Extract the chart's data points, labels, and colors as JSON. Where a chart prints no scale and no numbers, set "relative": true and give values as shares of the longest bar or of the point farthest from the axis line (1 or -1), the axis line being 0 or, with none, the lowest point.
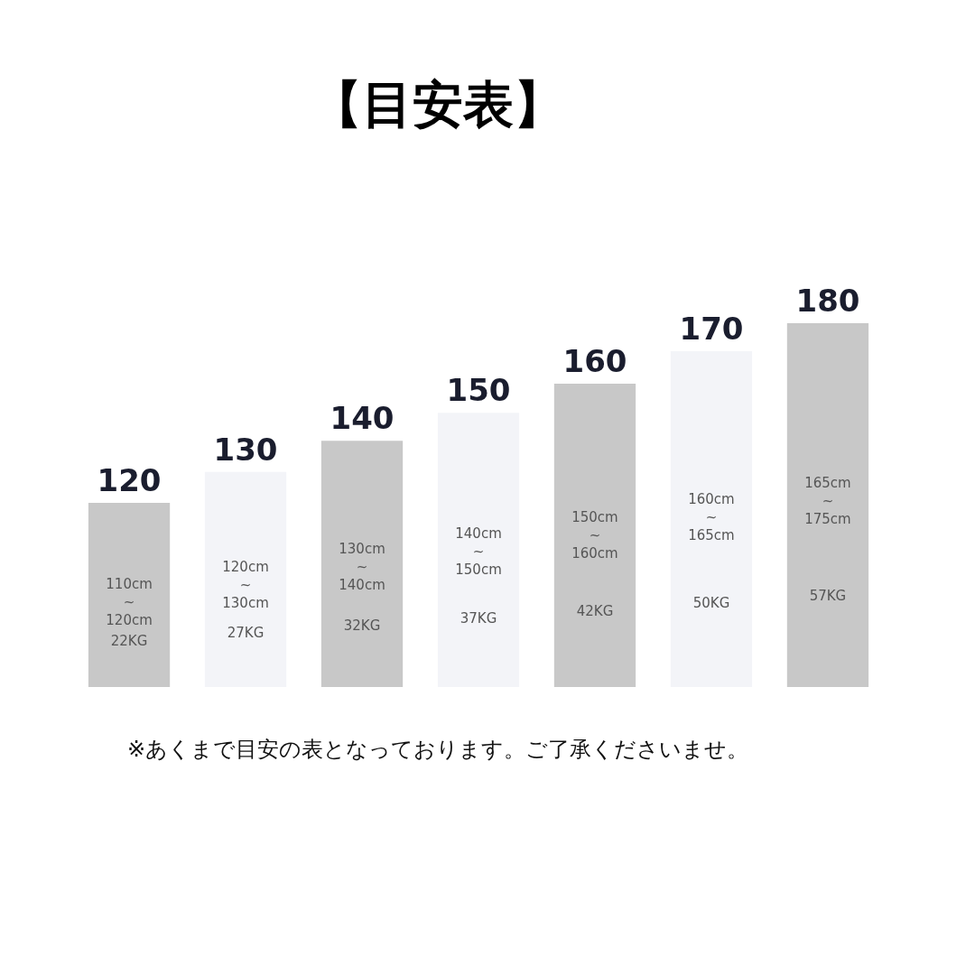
{
  "chart_data": {
    "type": "bar",
    "title": "【目安表】",
    "relative": true,
    "categories": [
      "120",
      "130",
      "140",
      "150",
      "160",
      "170",
      "180"
    ],
    "values": [
      0.506,
      0.591,
      0.677,
      0.754,
      0.834,
      0.923,
      1
    ],
    "colors": [
      "#c8c8c8",
      "#f3f4f8",
      "#c8c8c8",
      "#f3f4f8",
      "#c8c8c8",
      "#f3f4f8",
      "#c8c8c8"
    ],
    "annotations": [
      "110cm\n~\n120cm",
      "22KG",
      "120cm\n~\n130cm",
      "27KG",
      "130cm\n~\n140cm",
      "32KG",
      "140cm\n~\n150cm",
      "37KG",
      "150cm\n~\n160cm",
      "42KG",
      "160cm\n~\n165cm",
      "50KG",
      "165cm\n~\n175cm",
      "57KG",
      "※あくまで目安の表となっております。ご了承くださいませ。"
    ]
  }
}
